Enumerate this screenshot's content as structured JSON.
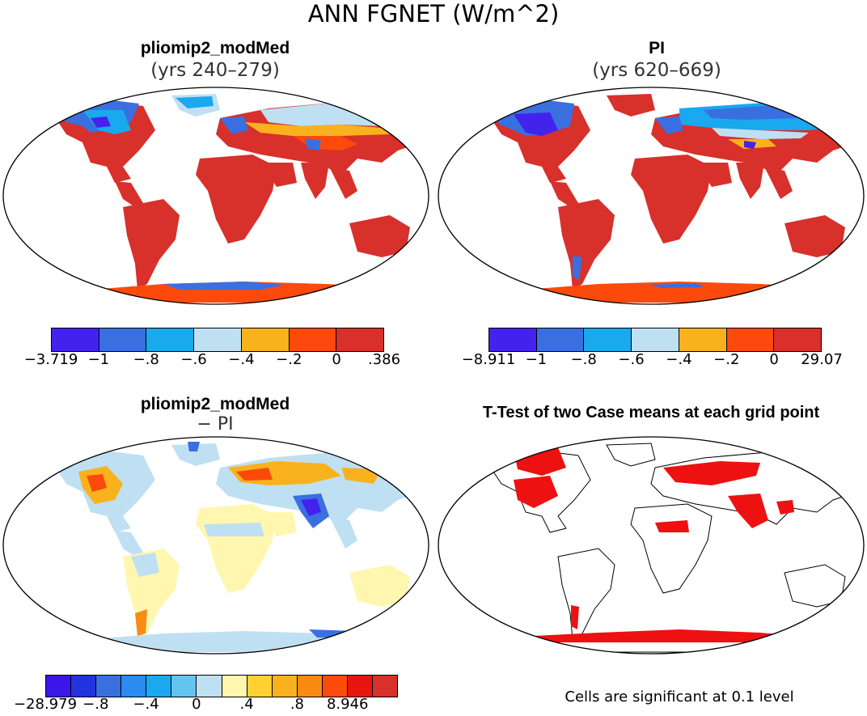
{
  "figure": {
    "title": "ANN FGNET (W/m^2)"
  },
  "panels": {
    "top_left": {
      "title": "pliomip2_modMed",
      "subtitle": "(yrs 240–279)",
      "colorbar": {
        "colors": [
          "#4422ee",
          "#3a6fe0",
          "#1aa8ee",
          "#bfe0f2",
          "#f9b21e",
          "#fc4a0c",
          "#d8302a"
        ],
        "labels": [
          "−3.719",
          "−1",
          "−.8",
          "−.6",
          "−.4",
          "−.2",
          "0",
          ".386"
        ]
      }
    },
    "top_right": {
      "title": "PI",
      "subtitle": "(yrs 620–669)",
      "colorbar": {
        "colors": [
          "#4422ee",
          "#3a6fe0",
          "#1aa8ee",
          "#bfe0f2",
          "#f9b21e",
          "#fc4a0c",
          "#d8302a"
        ],
        "labels": [
          "−8.911",
          "−1",
          "−.8",
          "−.6",
          "−.4",
          "−.2",
          "0",
          "29.07"
        ]
      }
    },
    "bottom_left": {
      "title": "pliomip2_modMed",
      "subtitle": "− PI",
      "colorbar": {
        "colors": [
          "#3a16ea",
          "#2233dd",
          "#3a6fe0",
          "#2a8cf0",
          "#1aa8ee",
          "#64c4f0",
          "#bfe0f2",
          "#fff7b0",
          "#ffd232",
          "#f9b21e",
          "#f98a12",
          "#fc4a0c",
          "#e8140e",
          "#d8302a"
        ],
        "labels": [
          "−28.979",
          "−.8",
          "−.4",
          "0",
          ".4",
          ".8",
          "8.946"
        ]
      }
    },
    "bottom_right": {
      "title": "T-Test of two Case means at each grid point",
      "footnote": "Cells are significant at 0.1 level",
      "significance_color": "#ee1111"
    }
  }
}
